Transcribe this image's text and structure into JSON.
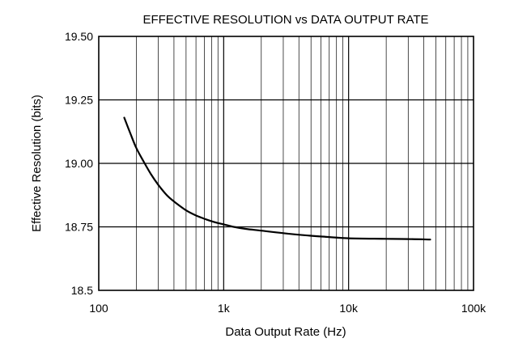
{
  "chart_data": {
    "type": "line",
    "title": "EFFECTIVE RESOLUTION vs DATA OUTPUT RATE",
    "xlabel": "Data Output Rate (Hz)",
    "ylabel": "Effective Resolution (bits)",
    "xscale": "log",
    "xlim": [
      100,
      100000
    ],
    "ylim": [
      18.5,
      19.5
    ],
    "grid": true,
    "x_tick_labels": [
      {
        "value": 100,
        "label": "100"
      },
      {
        "value": 1000,
        "label": "1k"
      },
      {
        "value": 10000,
        "label": "10k"
      },
      {
        "value": 100000,
        "label": "100k"
      }
    ],
    "y_tick_labels": [
      {
        "value": 18.5,
        "label": "18.5"
      },
      {
        "value": 18.75,
        "label": "18.75"
      },
      {
        "value": 19.0,
        "label": "19.00"
      },
      {
        "value": 19.25,
        "label": "19.25"
      },
      {
        "value": 19.5,
        "label": "19.50"
      }
    ],
    "series": [
      {
        "x": [
          160,
          180,
          200,
          230,
          260,
          300,
          350,
          400,
          500,
          600,
          700,
          800,
          900,
          1000,
          1200,
          1500,
          2000,
          3000,
          5000,
          7000,
          10000,
          20000,
          30000,
          45000
        ],
        "y": [
          19.18,
          19.115,
          19.06,
          19.005,
          18.96,
          18.915,
          18.875,
          18.85,
          18.815,
          18.795,
          18.782,
          18.772,
          18.765,
          18.76,
          18.75,
          18.742,
          18.735,
          18.725,
          18.715,
          18.71,
          18.705,
          18.703,
          18.702,
          18.7
        ]
      }
    ]
  }
}
